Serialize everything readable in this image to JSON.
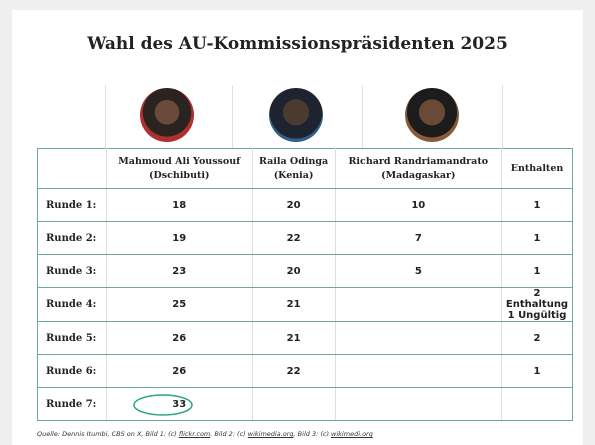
{
  "header": {
    "title": "Wahl des AU-Kommissionspräsidenten 2025"
  },
  "table": {
    "columns": [
      null,
      [
        "Mahmoud Ali Youssouf",
        "(Dschibuti)"
      ],
      [
        "Raila Odinga",
        "(Kenia)"
      ],
      [
        "Richard Randriamandrato",
        "(Madagaskar)"
      ],
      [
        "Enthalten"
      ]
    ],
    "rows": [
      [
        "Runde 1:",
        "18",
        "20",
        "10",
        "1"
      ],
      [
        "Runde 2:",
        "19",
        "22",
        "7",
        "1"
      ],
      [
        "Runde 3:",
        "23",
        "20",
        "5",
        "1"
      ],
      [
        "Runde 4:",
        "25",
        "21",
        null,
        [
          "2 Enthaltung",
          "1 Ungültig"
        ]
      ],
      [
        "Runde 5:",
        "26",
        "21",
        null,
        "2"
      ],
      [
        "Runde 6:",
        "26",
        "22",
        null,
        "1"
      ],
      [
        "Runde 7:",
        "33",
        null,
        null,
        null
      ]
    ]
  },
  "footer": {
    "source": [
      "Quelle: Dennis Itumbi, CBS on X, Bild 1: (c) ",
      "flickr.com",
      ". Bild 2: (c) ",
      "wikimedia.org",
      ", Bild 3: (c) ",
      "wikimedi.org"
    ]
  }
}
